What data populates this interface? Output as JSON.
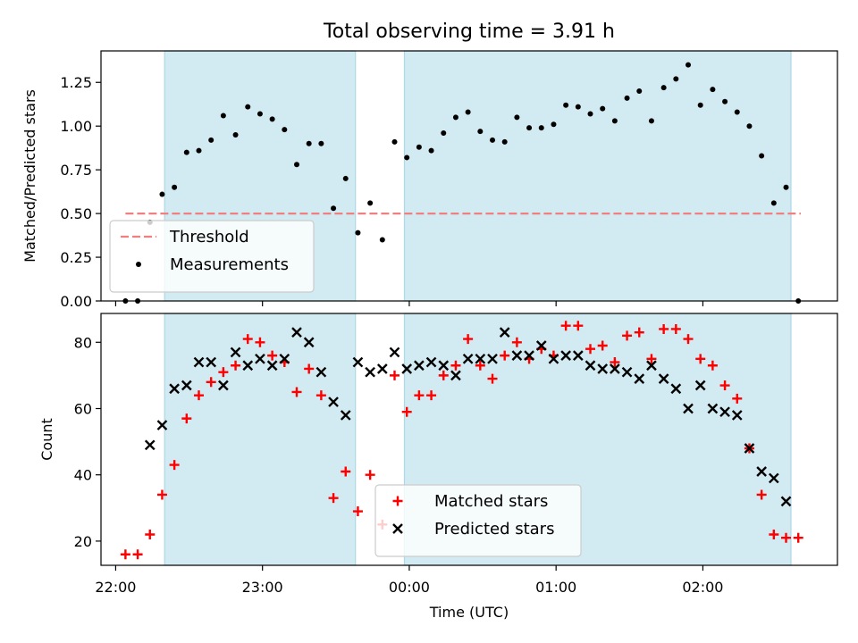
{
  "chart_data": {
    "title": "Total observing time = 3.91 h",
    "xlabel": "Time (UTC)",
    "x_ticks": [
      "22:00",
      "23:00",
      "00:00",
      "01:00",
      "02:00"
    ],
    "shaded_color": "#add8e6",
    "shaded_intervals": [
      [
        "22:20",
        "23:38"
      ],
      [
        "23:58",
        "02:36"
      ]
    ],
    "panels": [
      {
        "type": "scatter",
        "ylabel": "Matched/Predicted stars",
        "ylim": [
          0,
          1.43
        ],
        "y_ticks": [
          "0.00",
          "0.25",
          "0.50",
          "0.75",
          "1.00",
          "1.25"
        ],
        "threshold": {
          "name": "Threshold",
          "value": 0.5,
          "x_range": [
            "22:04",
            "02:40"
          ],
          "color": "#f08080"
        },
        "legend_placement": "lower-left",
        "series": [
          {
            "name": "Measurements",
            "color": "#000000",
            "marker": "dot",
            "points": [
              [
                "22:04",
                0.0
              ],
              [
                "22:09",
                0.0
              ],
              [
                "22:14",
                0.45
              ],
              [
                "22:19",
                0.61
              ],
              [
                "22:24",
                0.65
              ],
              [
                "22:29",
                0.85
              ],
              [
                "22:34",
                0.86
              ],
              [
                "22:39",
                0.92
              ],
              [
                "22:44",
                1.06
              ],
              [
                "22:49",
                0.95
              ],
              [
                "22:54",
                1.11
              ],
              [
                "22:59",
                1.07
              ],
              [
                "23:04",
                1.04
              ],
              [
                "23:09",
                0.98
              ],
              [
                "23:14",
                0.78
              ],
              [
                "23:19",
                0.9
              ],
              [
                "23:24",
                0.9
              ],
              [
                "23:29",
                0.53
              ],
              [
                "23:34",
                0.7
              ],
              [
                "23:39",
                0.39
              ],
              [
                "23:44",
                0.56
              ],
              [
                "23:49",
                0.35
              ],
              [
                "23:54",
                0.91
              ],
              [
                "23:59",
                0.82
              ],
              [
                "00:04",
                0.88
              ],
              [
                "00:09",
                0.86
              ],
              [
                "00:14",
                0.96
              ],
              [
                "00:19",
                1.05
              ],
              [
                "00:24",
                1.08
              ],
              [
                "00:29",
                0.97
              ],
              [
                "00:34",
                0.92
              ],
              [
                "00:39",
                0.91
              ],
              [
                "00:44",
                1.05
              ],
              [
                "00:49",
                0.99
              ],
              [
                "00:54",
                0.99
              ],
              [
                "00:59",
                1.01
              ],
              [
                "01:04",
                1.12
              ],
              [
                "01:09",
                1.11
              ],
              [
                "01:14",
                1.07
              ],
              [
                "01:19",
                1.1
              ],
              [
                "01:24",
                1.03
              ],
              [
                "01:29",
                1.16
              ],
              [
                "01:34",
                1.2
              ],
              [
                "01:39",
                1.03
              ],
              [
                "01:44",
                1.22
              ],
              [
                "01:49",
                1.27
              ],
              [
                "01:54",
                1.35
              ],
              [
                "01:59",
                1.12
              ],
              [
                "02:04",
                1.21
              ],
              [
                "02:09",
                1.14
              ],
              [
                "02:14",
                1.08
              ],
              [
                "02:19",
                1.0
              ],
              [
                "02:24",
                0.83
              ],
              [
                "02:29",
                0.56
              ],
              [
                "02:34",
                0.65
              ],
              [
                "02:39",
                0.0
              ]
            ]
          }
        ]
      },
      {
        "type": "scatter",
        "ylabel": "Count",
        "ylim": [
          12.7,
          88.7
        ],
        "y_ticks": [
          "20",
          "40",
          "60",
          "80"
        ],
        "legend_placement": "lower-center",
        "series": [
          {
            "name": "Matched stars",
            "color": "#ff0000",
            "marker": "plus",
            "points": [
              [
                "22:04",
                16
              ],
              [
                "22:09",
                16
              ],
              [
                "22:14",
                22
              ],
              [
                "22:19",
                34
              ],
              [
                "22:24",
                43
              ],
              [
                "22:29",
                57
              ],
              [
                "22:34",
                64
              ],
              [
                "22:39",
                68
              ],
              [
                "22:44",
                71
              ],
              [
                "22:49",
                73
              ],
              [
                "22:54",
                81
              ],
              [
                "22:59",
                80
              ],
              [
                "23:04",
                76
              ],
              [
                "23:09",
                74
              ],
              [
                "23:14",
                65
              ],
              [
                "23:19",
                72
              ],
              [
                "23:24",
                64
              ],
              [
                "23:29",
                33
              ],
              [
                "23:34",
                41
              ],
              [
                "23:39",
                29
              ],
              [
                "23:44",
                40
              ],
              [
                "23:49",
                25
              ],
              [
                "23:54",
                70
              ],
              [
                "23:59",
                59
              ],
              [
                "00:04",
                64
              ],
              [
                "00:09",
                64
              ],
              [
                "00:14",
                70
              ],
              [
                "00:19",
                73
              ],
              [
                "00:24",
                81
              ],
              [
                "00:29",
                73
              ],
              [
                "00:34",
                69
              ],
              [
                "00:39",
                76
              ],
              [
                "00:44",
                80
              ],
              [
                "00:49",
                75
              ],
              [
                "00:54",
                78
              ],
              [
                "00:59",
                76
              ],
              [
                "01:04",
                85
              ],
              [
                "01:09",
                85
              ],
              [
                "01:14",
                78
              ],
              [
                "01:19",
                79
              ],
              [
                "01:24",
                74
              ],
              [
                "01:29",
                82
              ],
              [
                "01:34",
                83
              ],
              [
                "01:39",
                75
              ],
              [
                "01:44",
                84
              ],
              [
                "01:49",
                84
              ],
              [
                "01:54",
                81
              ],
              [
                "01:59",
                75
              ],
              [
                "02:04",
                73
              ],
              [
                "02:09",
                67
              ],
              [
                "02:14",
                63
              ],
              [
                "02:19",
                48
              ],
              [
                "02:24",
                34
              ],
              [
                "02:29",
                22
              ],
              [
                "02:34",
                21
              ],
              [
                "02:39",
                21
              ]
            ]
          },
          {
            "name": "Predicted stars",
            "color": "#000000",
            "marker": "x",
            "points": [
              [
                "22:14",
                49
              ],
              [
                "22:19",
                55
              ],
              [
                "22:24",
                66
              ],
              [
                "22:29",
                67
              ],
              [
                "22:34",
                74
              ],
              [
                "22:39",
                74
              ],
              [
                "22:44",
                67
              ],
              [
                "22:49",
                77
              ],
              [
                "22:54",
                73
              ],
              [
                "22:59",
                75
              ],
              [
                "23:04",
                73
              ],
              [
                "23:09",
                75
              ],
              [
                "23:14",
                83
              ],
              [
                "23:19",
                80
              ],
              [
                "23:24",
                71
              ],
              [
                "23:29",
                62
              ],
              [
                "23:34",
                58
              ],
              [
                "23:39",
                74
              ],
              [
                "23:44",
                71
              ],
              [
                "23:49",
                72
              ],
              [
                "23:54",
                77
              ],
              [
                "23:59",
                72
              ],
              [
                "00:04",
                73
              ],
              [
                "00:09",
                74
              ],
              [
                "00:14",
                73
              ],
              [
                "00:19",
                70
              ],
              [
                "00:24",
                75
              ],
              [
                "00:29",
                75
              ],
              [
                "00:34",
                75
              ],
              [
                "00:39",
                83
              ],
              [
                "00:44",
                76
              ],
              [
                "00:49",
                76
              ],
              [
                "00:54",
                79
              ],
              [
                "00:59",
                75
              ],
              [
                "01:04",
                76
              ],
              [
                "01:09",
                76
              ],
              [
                "01:14",
                73
              ],
              [
                "01:19",
                72
              ],
              [
                "01:24",
                72
              ],
              [
                "01:29",
                71
              ],
              [
                "01:34",
                69
              ],
              [
                "01:39",
                73
              ],
              [
                "01:44",
                69
              ],
              [
                "01:49",
                66
              ],
              [
                "01:54",
                60
              ],
              [
                "01:59",
                67
              ],
              [
                "02:04",
                60
              ],
              [
                "02:09",
                59
              ],
              [
                "02:14",
                58
              ],
              [
                "02:19",
                48
              ],
              [
                "02:24",
                41
              ],
              [
                "02:29",
                39
              ],
              [
                "02:34",
                32
              ]
            ]
          }
        ]
      }
    ]
  }
}
